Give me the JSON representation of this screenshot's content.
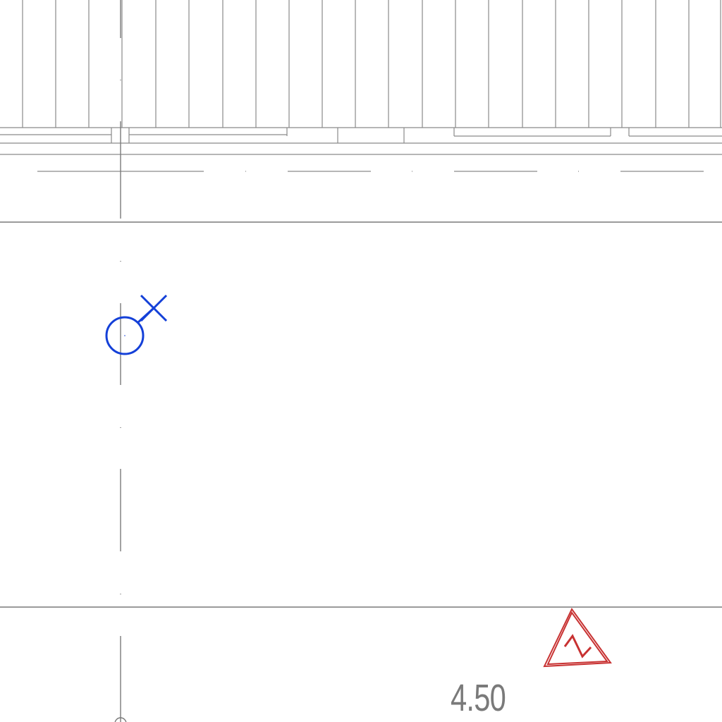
{
  "drawing": {
    "dimension_label": "4.50",
    "symbols": {
      "outlet_symbol": "ground-outlet-icon",
      "warning_symbol": "electrical-warning-triangle-icon"
    },
    "colors": {
      "line": "#8a8a8a",
      "line_dark": "#6e6e6e",
      "outlet": "#1440d8",
      "warning": "#c83232",
      "background": "#ffffff"
    }
  }
}
